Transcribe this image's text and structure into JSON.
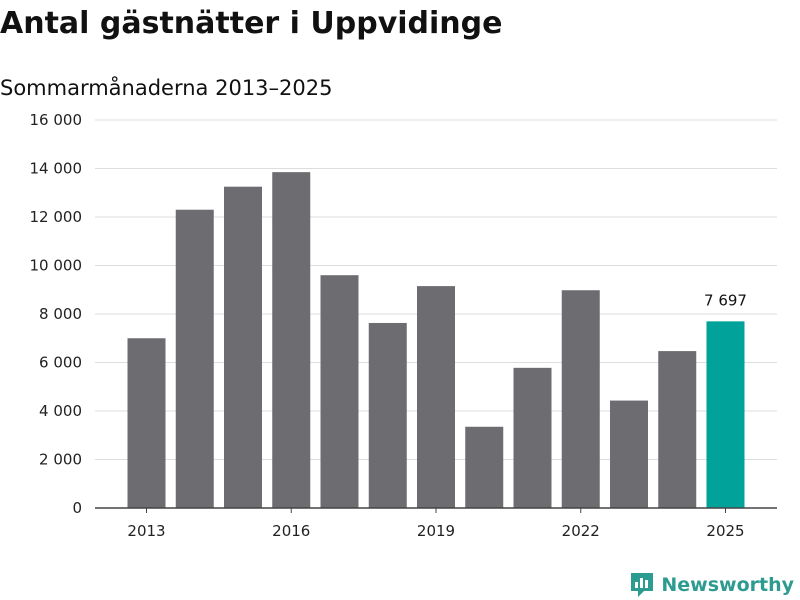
{
  "chart_data": {
    "type": "bar",
    "title": "Antal gästnätter i Uppvidinge",
    "subtitle": "Sommarmånaderna 2013–2025",
    "categories": [
      "2013",
      "2014",
      "2015",
      "2016",
      "2017",
      "2018",
      "2019",
      "2020",
      "2021",
      "2022",
      "2023",
      "2024",
      "2025"
    ],
    "x_tick_labels": [
      "2013",
      "2016",
      "2019",
      "2022",
      "2025"
    ],
    "values": [
      7000,
      12300,
      13250,
      13850,
      9600,
      7630,
      9150,
      3350,
      5780,
      8980,
      4430,
      6470,
      7697
    ],
    "highlight_index": 12,
    "highlight_label": "7 697",
    "ylim": [
      0,
      16000
    ],
    "y_ticks": [
      0,
      2000,
      4000,
      6000,
      8000,
      10000,
      12000,
      14000,
      16000
    ],
    "y_tick_labels": [
      "0",
      "2 000",
      "4 000",
      "6 000",
      "8 000",
      "10 000",
      "12 000",
      "14 000",
      "16 000"
    ],
    "grid": true,
    "xlabel": "",
    "ylabel": "",
    "colors": {
      "bar": "#6d6c71",
      "highlight": "#00a29a",
      "grid": "#dddddd",
      "axis": "#444444"
    }
  },
  "brand": {
    "name": "Newsworthy",
    "icon": "newsworthy-logo-icon",
    "color": "#2e9b91"
  }
}
